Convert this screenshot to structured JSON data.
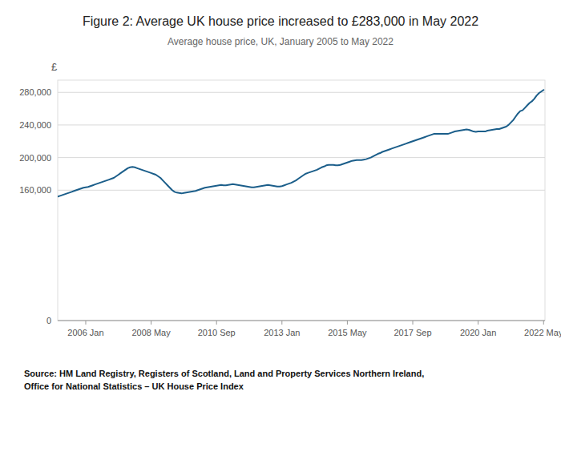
{
  "chart_data": {
    "type": "line",
    "title": "Figure 2: Average UK house price increased to £283,000 in May 2022",
    "subtitle": "Average house price, UK, January 2005 to May 2022",
    "ylabel": "£",
    "source": "Source: HM Land Registry, Registers of Scotland, Land and Property Services Northern Ireland,\nOffice for National Statistics – UK House Price Index",
    "color": "#1b5e8a",
    "grid": true,
    "xlim": [
      2005.0,
      2022.3833333333332
    ],
    "xticks": [
      {
        "value": 2006.0,
        "label": "2006 Jan"
      },
      {
        "value": 2008.3333333333333,
        "label": "2008 May"
      },
      {
        "value": 2010.6666666666667,
        "label": "2010 Sep"
      },
      {
        "value": 2013.0,
        "label": "2013 Jan"
      },
      {
        "value": 2015.3333333333333,
        "label": "2015 May"
      },
      {
        "value": 2017.6666666666667,
        "label": "2017 Sep"
      },
      {
        "value": 2020.0,
        "label": "2020 Jan"
      },
      {
        "value": 2022.3333333333333,
        "label": "2022 May"
      }
    ],
    "ylim": [
      0,
      295000
    ],
    "yticks": [
      0,
      {
        "value": 160000,
        "label": "160,000"
      },
      {
        "value": 200000,
        "label": "200,000"
      },
      {
        "value": 240000,
        "label": "240,000"
      },
      {
        "value": 280000,
        "label": "280,000"
      }
    ],
    "x": [
      2005.0,
      2005.083,
      2005.167,
      2005.25,
      2005.333,
      2005.417,
      2005.5,
      2005.583,
      2005.667,
      2005.75,
      2005.833,
      2005.917,
      2006.0,
      2006.083,
      2006.167,
      2006.25,
      2006.333,
      2006.417,
      2006.5,
      2006.583,
      2006.667,
      2006.75,
      2006.833,
      2006.917,
      2007.0,
      2007.083,
      2007.167,
      2007.25,
      2007.333,
      2007.417,
      2007.5,
      2007.583,
      2007.667,
      2007.75,
      2007.833,
      2007.917,
      2008.0,
      2008.083,
      2008.167,
      2008.25,
      2008.333,
      2008.417,
      2008.5,
      2008.583,
      2008.667,
      2008.75,
      2008.833,
      2008.917,
      2009.0,
      2009.083,
      2009.167,
      2009.25,
      2009.333,
      2009.417,
      2009.5,
      2009.583,
      2009.667,
      2009.75,
      2009.833,
      2009.917,
      2010.0,
      2010.083,
      2010.167,
      2010.25,
      2010.333,
      2010.417,
      2010.5,
      2010.583,
      2010.667,
      2010.75,
      2010.833,
      2010.917,
      2011.0,
      2011.083,
      2011.167,
      2011.25,
      2011.333,
      2011.417,
      2011.5,
      2011.583,
      2011.667,
      2011.75,
      2011.833,
      2011.917,
      2012.0,
      2012.083,
      2012.167,
      2012.25,
      2012.333,
      2012.417,
      2012.5,
      2012.583,
      2012.667,
      2012.75,
      2012.833,
      2012.917,
      2013.0,
      2013.083,
      2013.167,
      2013.25,
      2013.333,
      2013.417,
      2013.5,
      2013.583,
      2013.667,
      2013.75,
      2013.833,
      2013.917,
      2014.0,
      2014.083,
      2014.167,
      2014.25,
      2014.333,
      2014.417,
      2014.5,
      2014.583,
      2014.667,
      2014.75,
      2014.833,
      2014.917,
      2015.0,
      2015.083,
      2015.167,
      2015.25,
      2015.333,
      2015.417,
      2015.5,
      2015.583,
      2015.667,
      2015.75,
      2015.833,
      2015.917,
      2016.0,
      2016.083,
      2016.167,
      2016.25,
      2016.333,
      2016.417,
      2016.5,
      2016.583,
      2016.667,
      2016.75,
      2016.833,
      2016.917,
      2017.0,
      2017.083,
      2017.167,
      2017.25,
      2017.333,
      2017.417,
      2017.5,
      2017.583,
      2017.667,
      2017.75,
      2017.833,
      2017.917,
      2018.0,
      2018.083,
      2018.167,
      2018.25,
      2018.333,
      2018.417,
      2018.5,
      2018.583,
      2018.667,
      2018.75,
      2018.833,
      2018.917,
      2019.0,
      2019.083,
      2019.167,
      2019.25,
      2019.333,
      2019.417,
      2019.5,
      2019.583,
      2019.667,
      2019.75,
      2019.833,
      2019.917,
      2020.0,
      2020.083,
      2020.167,
      2020.25,
      2020.333,
      2020.417,
      2020.5,
      2020.583,
      2020.667,
      2020.75,
      2020.833,
      2020.917,
      2021.0,
      2021.083,
      2021.167,
      2021.25,
      2021.333,
      2021.417,
      2021.5,
      2021.583,
      2021.667,
      2021.75,
      2021.833,
      2021.917,
      2022.0,
      2022.083,
      2022.167,
      2022.25,
      2022.333
    ],
    "values": [
      152000,
      153000,
      154000,
      155000,
      156000,
      157000,
      158000,
      159000,
      160000,
      161000,
      162000,
      163000,
      163500,
      164000,
      165000,
      166000,
      167000,
      168000,
      169000,
      170000,
      171000,
      172000,
      173000,
      174000,
      175000,
      177000,
      179000,
      181000,
      183000,
      185000,
      187000,
      188000,
      188500,
      188000,
      187000,
      186000,
      185000,
      184000,
      183000,
      182000,
      181000,
      180000,
      179000,
      177000,
      175000,
      172000,
      169000,
      166000,
      163000,
      160000,
      158000,
      157000,
      156500,
      156000,
      156500,
      157000,
      157500,
      158000,
      158500,
      159000,
      160000,
      161000,
      162000,
      163000,
      163500,
      164000,
      164500,
      165000,
      165500,
      166000,
      166500,
      166000,
      166000,
      166500,
      167000,
      167500,
      167000,
      166500,
      166000,
      165500,
      165000,
      164500,
      164000,
      163500,
      163500,
      164000,
      164500,
      165000,
      165500,
      166000,
      166500,
      166000,
      165500,
      165000,
      164500,
      164500,
      165000,
      166000,
      167000,
      168000,
      169000,
      170500,
      172000,
      174000,
      176000,
      178000,
      180000,
      181000,
      182000,
      183000,
      184000,
      185000,
      186500,
      188000,
      189000,
      190500,
      191000,
      191000,
      191000,
      190500,
      190500,
      191000,
      192000,
      193000,
      194000,
      195000,
      196000,
      196500,
      197000,
      197000,
      197000,
      197500,
      198000,
      199000,
      200000,
      201500,
      203000,
      204500,
      205500,
      207000,
      208000,
      209000,
      210000,
      211000,
      212000,
      213000,
      214000,
      215000,
      216000,
      217000,
      218000,
      219000,
      220000,
      221000,
      222000,
      223000,
      224000,
      225000,
      226000,
      227000,
      228000,
      229000,
      229000,
      229000,
      229000,
      229000,
      229000,
      229000,
      230000,
      231000,
      232000,
      232500,
      233000,
      233500,
      234000,
      234500,
      234000,
      233000,
      232000,
      231500,
      232000,
      232000,
      232000,
      232000,
      233000,
      233500,
      234000,
      234500,
      235000,
      235000,
      236000,
      237000,
      238000,
      240000,
      243000,
      246000,
      250000,
      254000,
      257000,
      258000,
      261000,
      264000,
      267000,
      269000,
      272000,
      276000,
      279000,
      281000,
      283000
    ]
  }
}
